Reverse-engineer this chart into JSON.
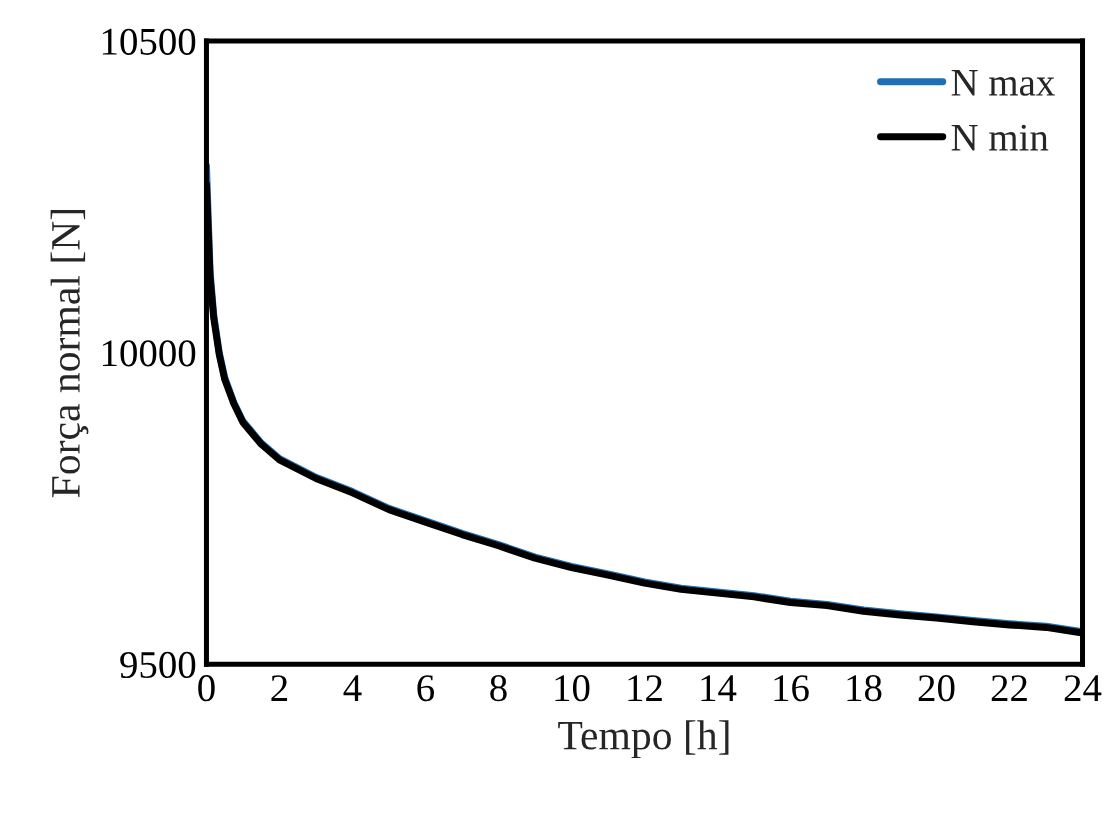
{
  "chart_data": {
    "type": "line",
    "xlabel": "Tempo [h]",
    "ylabel": "Força normal [N]",
    "xlim": [
      0,
      24
    ],
    "xticks": [
      0,
      2,
      4,
      6,
      8,
      10,
      12,
      14,
      16,
      18,
      20,
      22,
      24
    ],
    "ylim": [
      9500,
      10500
    ],
    "yticks": [
      9500,
      10000,
      10500
    ],
    "grid": false,
    "legend": "top right",
    "x": [
      0,
      0.1,
      0.2,
      0.35,
      0.5,
      0.75,
      1,
      1.5,
      2,
      3,
      4,
      5,
      6,
      7,
      8,
      9,
      10,
      11,
      12,
      13,
      14,
      15,
      16,
      17,
      18,
      19,
      20,
      21,
      22,
      23,
      24
    ],
    "series": [
      {
        "name": "N max",
        "color": "#1f6fb5",
        "values": [
          10300,
          10130,
          10060,
          10000,
          9960,
          9920,
          9890,
          9855,
          9830,
          9800,
          9777,
          9750,
          9730,
          9710,
          9692,
          9672,
          9657,
          9645,
          9632,
          9622,
          9616,
          9610,
          9601,
          9596,
          9587,
          9581,
          9576,
          9570,
          9565,
          9561,
          9552
        ]
      },
      {
        "name": "N min",
        "color": "#000000",
        "values": [
          10270,
          10120,
          10055,
          9997,
          9957,
          9918,
          9888,
          9853,
          9828,
          9798,
          9775,
          9748,
          9728,
          9708,
          9690,
          9670,
          9655,
          9643,
          9630,
          9620,
          9614,
          9608,
          9599,
          9594,
          9585,
          9579,
          9574,
          9568,
          9563,
          9559,
          9550
        ]
      }
    ]
  }
}
